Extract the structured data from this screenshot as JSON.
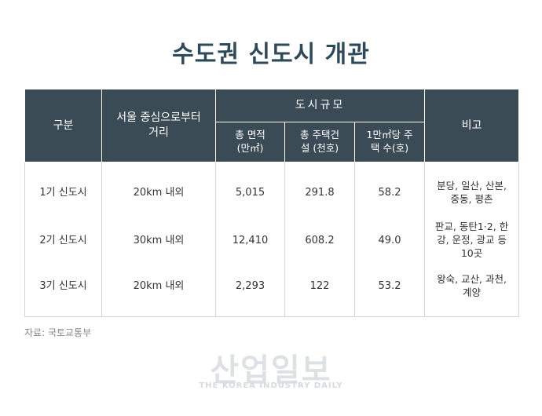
{
  "title": "수도권 신도시 개관",
  "table": {
    "headers": {
      "category": "구분",
      "distance": "서울 중심으로부터 거리",
      "scale_group": "도시규모",
      "area": "총 면적 (만㎡)",
      "housing": "총 주택건설 (천호)",
      "density": "1만㎡당 주택 수(호)",
      "note": "비고"
    },
    "rows": [
      {
        "category": "1기 신도시",
        "distance": "20km 내외",
        "area": "5,015",
        "housing": "291.8",
        "density": "58.2",
        "note": "분당, 일산, 산본, 중동, 평촌"
      },
      {
        "category": "2기 신도시",
        "distance": "30km 내외",
        "area": "12,410",
        "housing": "608.2",
        "density": "49.0",
        "note": "판교, 동탄1·2, 한강, 운정, 광교 등 10곳"
      },
      {
        "category": "3기 신도시",
        "distance": "20km 내외",
        "area": "2,293",
        "housing": "122",
        "density": "53.2",
        "note": "왕숙, 교산, 과천, 계양"
      }
    ]
  },
  "source": "자료: 국토교통부",
  "watermark": {
    "main": "산업일보",
    "sub": "THE KOREA INDUSTRY DAILY"
  }
}
